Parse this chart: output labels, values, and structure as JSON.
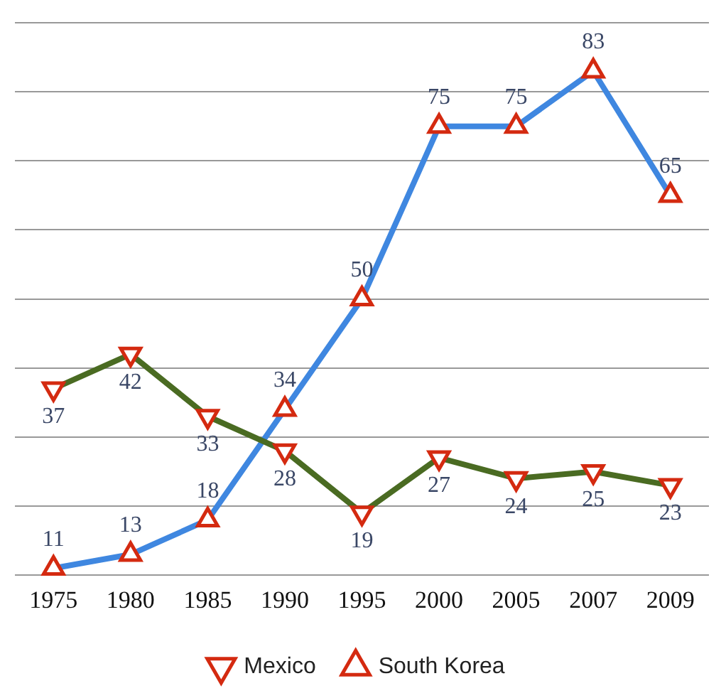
{
  "chart_data": {
    "type": "line",
    "categories": [
      "1975",
      "1980",
      "1985",
      "1990",
      "1995",
      "2000",
      "2005",
      "2007",
      "2009"
    ],
    "series": [
      {
        "name": "Mexico",
        "color": "#4a6b22",
        "marker": "triangle_down",
        "values": [
          37,
          42,
          33,
          28,
          19,
          27,
          24,
          25,
          23
        ]
      },
      {
        "name": "South Korea",
        "color": "#3f87e0",
        "marker": "triangle",
        "values": [
          11,
          13,
          18,
          34,
          50,
          75,
          75,
          83,
          65
        ]
      }
    ],
    "tick_labels": "x",
    "grid": "y",
    "legend": "bottom",
    "data_labels": true,
    "line_style": "solid"
  }
}
